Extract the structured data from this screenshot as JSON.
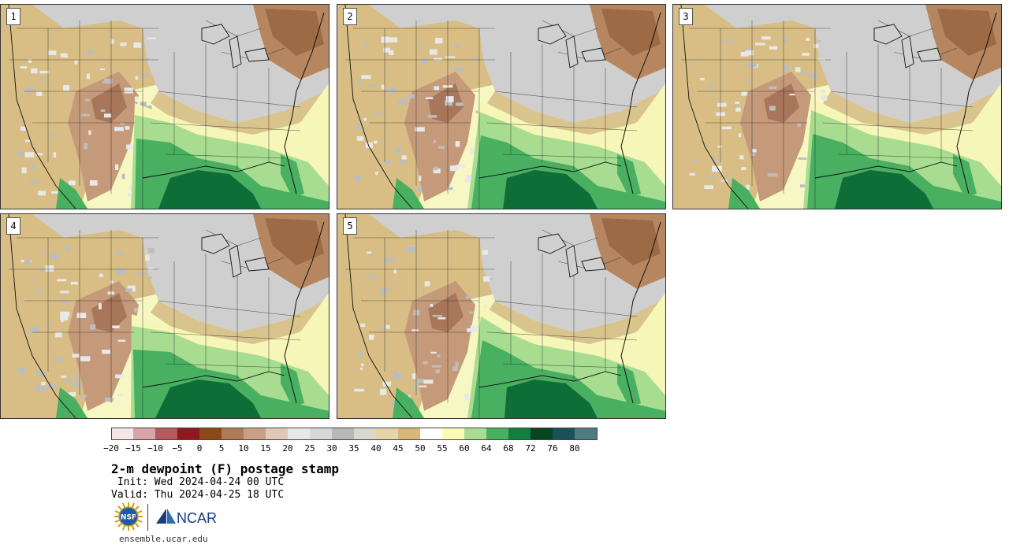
{
  "panels": [
    {
      "label": "1"
    },
    {
      "label": "2"
    },
    {
      "label": "3"
    },
    {
      "label": "4"
    },
    {
      "label": "5"
    }
  ],
  "colorbar": {
    "colors": [
      "#f2e6e6",
      "#d8a4a8",
      "#b45a5e",
      "#8c1a1e",
      "#8c4a14",
      "#b07a56",
      "#c8a088",
      "#e0c8b8",
      "#e8e8e8",
      "#d8d8d8",
      "#b8b8b8",
      "#d8d8cc",
      "#e4d4a8",
      "#d8b878",
      "#ffffff",
      "#fafab4",
      "#a8dc90",
      "#48b060",
      "#108040",
      "#0a4424",
      "#1a5058",
      "#4e7c80"
    ],
    "labels": [
      "-20",
      "-15",
      "-10",
      "-5",
      "0",
      "5",
      "10",
      "15",
      "20",
      "25",
      "30",
      "35",
      "40",
      "45",
      "50",
      "55",
      "60",
      "64",
      "68",
      "72",
      "76",
      "80"
    ]
  },
  "title": "2-m dewpoint (F) postage stamp",
  "init": " Init: Wed 2024-04-24 00 UTC",
  "valid": "Valid: Thu 2024-04-25 18 UTC",
  "logos": {
    "nsf": "NSF",
    "ncar": "NCAR"
  },
  "footer": "ensemble.ucar.edu"
}
